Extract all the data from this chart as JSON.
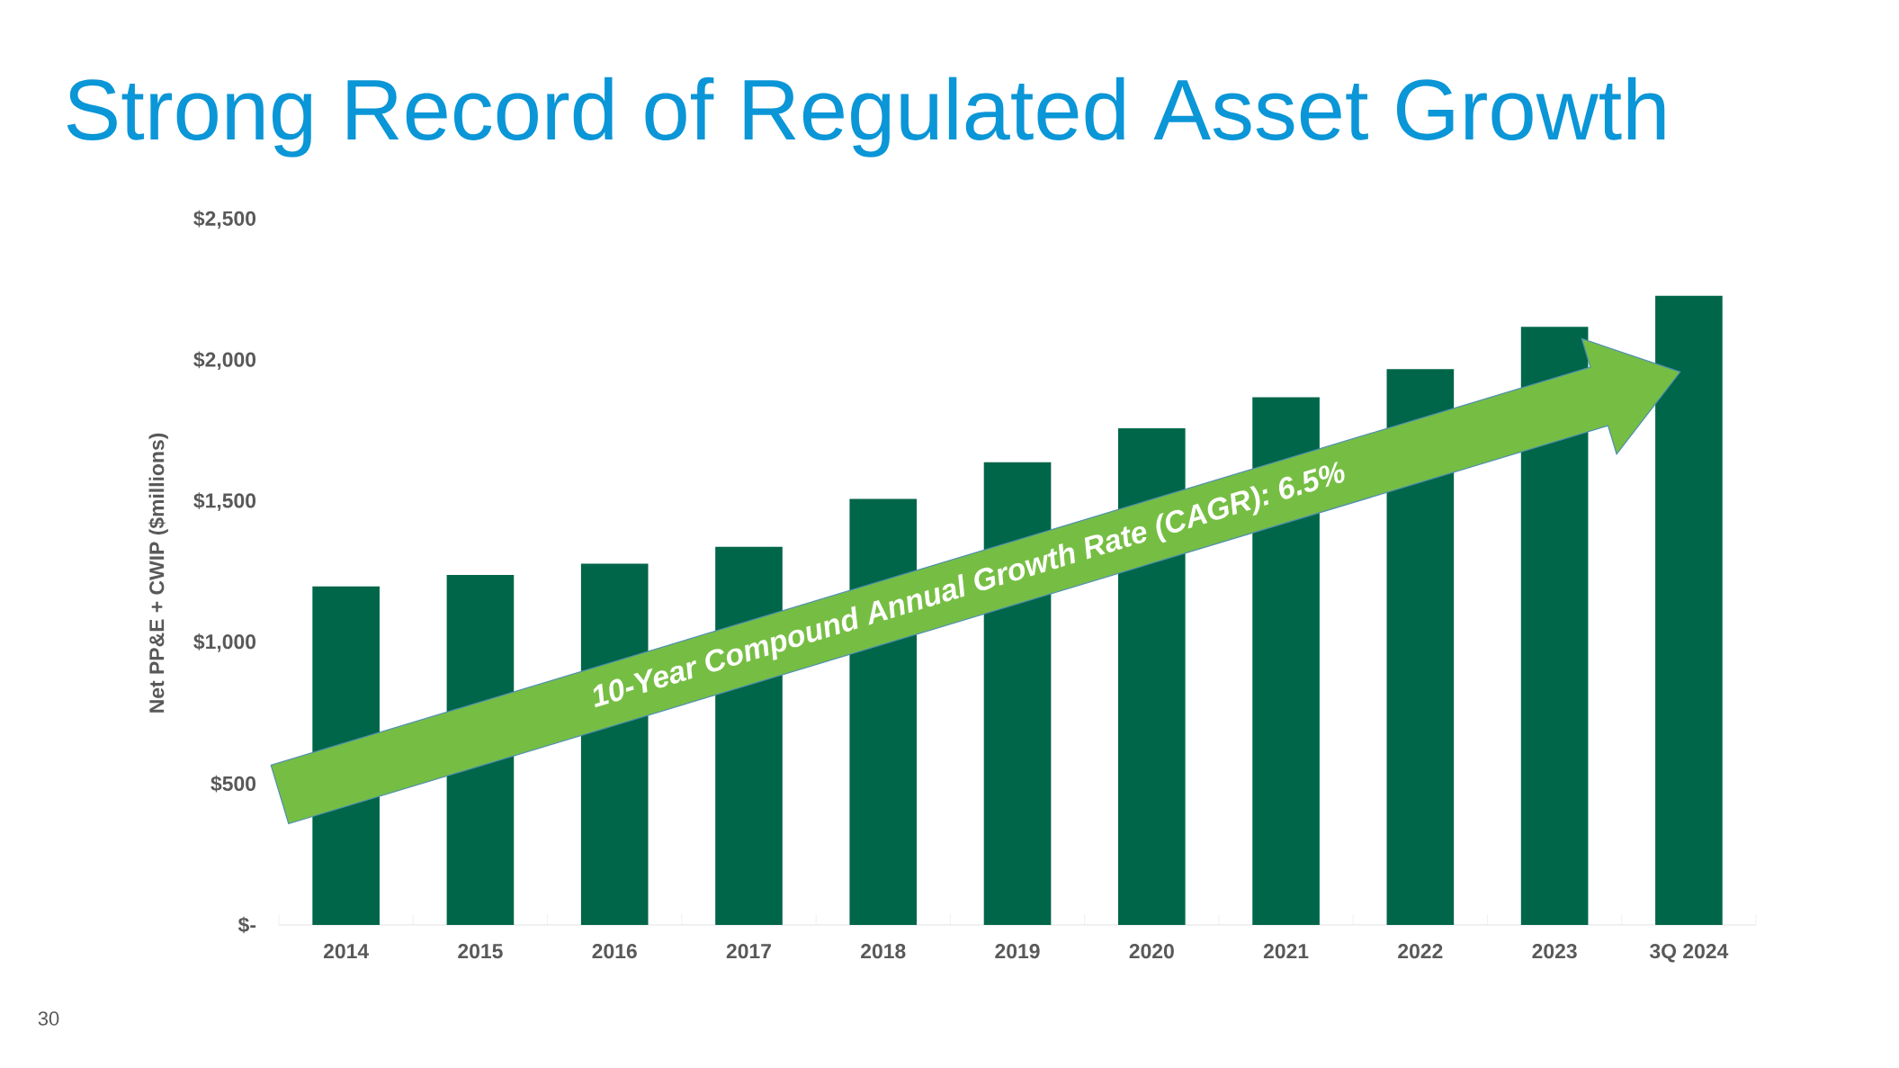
{
  "chart_data": {
    "type": "bar",
    "title": "Strong Record of Regulated Asset Growth",
    "ylabel": "Net PP&E + CWIP ($millions)",
    "categories": [
      "2014",
      "2015",
      "2016",
      "2017",
      "2018",
      "2019",
      "2020",
      "2021",
      "2022",
      "2023",
      "3Q 2024"
    ],
    "values": [
      1200,
      1240,
      1280,
      1340,
      1510,
      1640,
      1760,
      1870,
      1970,
      2120,
      2230
    ],
    "color": "#00664a",
    "ylim": [
      0,
      2500
    ],
    "yticks": [
      {
        "value": 0,
        "label": "$-"
      },
      {
        "value": 500,
        "label": "$500"
      },
      {
        "value": 1000,
        "label": "$1,000"
      },
      {
        "value": 1500,
        "label": "$1,500"
      },
      {
        "value": 2000,
        "label": "$2,000"
      },
      {
        "value": 2500,
        "label": "$2,500"
      }
    ],
    "annotations": [
      "10-Year Compound Annual Growth Rate (CAGR): 6.5%",
      "30"
    ]
  }
}
